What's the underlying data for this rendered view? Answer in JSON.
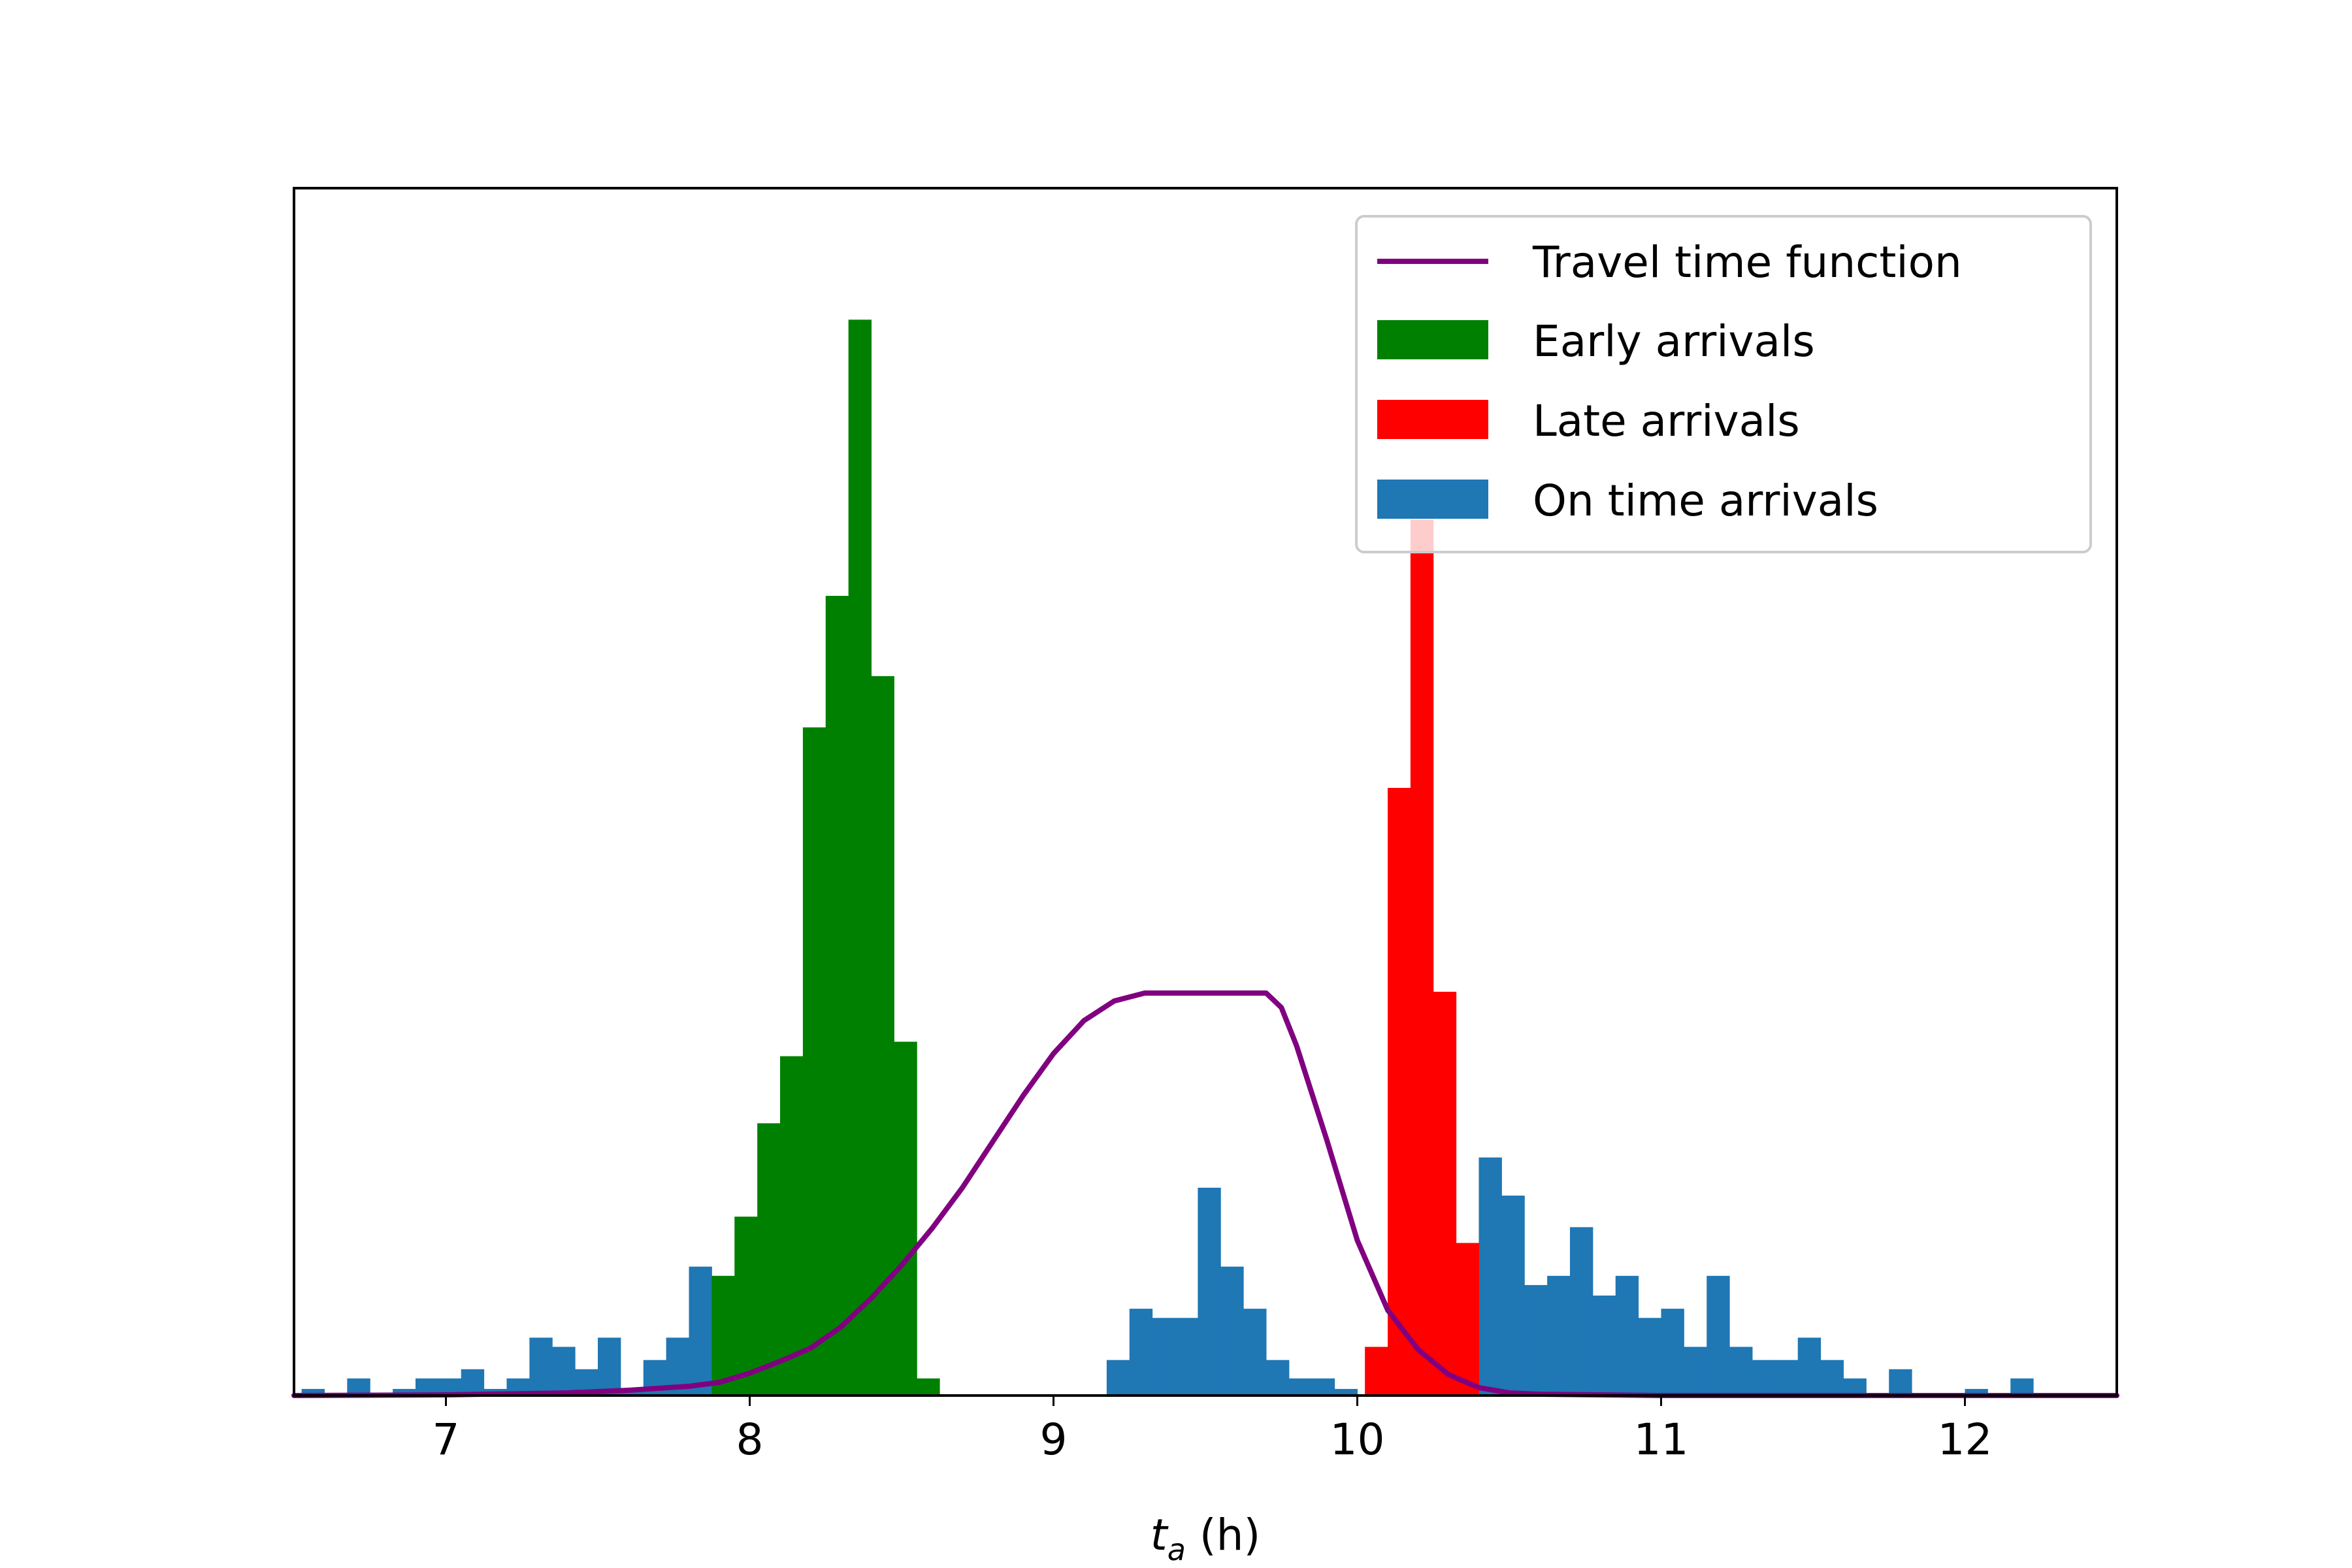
{
  "chart_data": {
    "type": "bar",
    "title": "",
    "xlabel": {
      "main": "t",
      "subscript": "a",
      "suffix": " (h)"
    },
    "ylabel": "",
    "xlim": [
      6.5,
      12.5
    ],
    "ylim": [
      0,
      91.8
    ],
    "bin_width": 0.075,
    "xticks": [
      7,
      8,
      9,
      10,
      11,
      12
    ],
    "show_y_ticks": false,
    "grid": false,
    "legend_position": "top-right",
    "legend": [
      {
        "label": "Travel time function",
        "kind": "line",
        "color": "#800080"
      },
      {
        "label": "Early arrivals",
        "kind": "patch",
        "color": "#008000"
      },
      {
        "label": "Late arrivals",
        "kind": "patch",
        "color": "#ff0000"
      },
      {
        "label": "On time arrivals",
        "kind": "patch",
        "color": "#1f77b4"
      }
    ],
    "series": [
      {
        "name": "On time arrivals",
        "color": "#1f77b4",
        "bins": [
          {
            "x": 6.525,
            "count": 0.5
          },
          {
            "x": 6.675,
            "count": 1.3
          },
          {
            "x": 6.825,
            "count": 0.5
          },
          {
            "x": 6.9,
            "count": 1.3
          },
          {
            "x": 6.975,
            "count": 1.3
          },
          {
            "x": 7.05,
            "count": 2.0
          },
          {
            "x": 7.125,
            "count": 0.5
          },
          {
            "x": 7.2,
            "count": 1.3
          },
          {
            "x": 7.275,
            "count": 4.4
          },
          {
            "x": 7.35,
            "count": 3.7
          },
          {
            "x": 7.425,
            "count": 2.0
          },
          {
            "x": 7.5,
            "count": 4.4
          },
          {
            "x": 7.575,
            "count": 0.5
          },
          {
            "x": 7.65,
            "count": 2.7
          },
          {
            "x": 7.725,
            "count": 4.4
          },
          {
            "x": 7.8,
            "count": 9.8
          },
          {
            "x": 9.175,
            "count": 2.7
          },
          {
            "x": 9.25,
            "count": 6.6
          },
          {
            "x": 9.325,
            "count": 5.9
          },
          {
            "x": 9.4,
            "count": 5.9
          },
          {
            "x": 9.475,
            "count": 15.8
          },
          {
            "x": 9.55,
            "count": 9.8
          },
          {
            "x": 9.625,
            "count": 6.6
          },
          {
            "x": 9.7,
            "count": 2.7
          },
          {
            "x": 9.775,
            "count": 1.3
          },
          {
            "x": 9.85,
            "count": 1.3
          },
          {
            "x": 9.925,
            "count": 0.5
          },
          {
            "x": 10.4,
            "count": 18.1
          },
          {
            "x": 10.475,
            "count": 15.2
          },
          {
            "x": 10.55,
            "count": 8.4
          },
          {
            "x": 10.625,
            "count": 9.1
          },
          {
            "x": 10.7,
            "count": 12.8
          },
          {
            "x": 10.775,
            "count": 7.6
          },
          {
            "x": 10.85,
            "count": 9.1
          },
          {
            "x": 10.925,
            "count": 5.9
          },
          {
            "x": 11.0,
            "count": 6.6
          },
          {
            "x": 11.075,
            "count": 3.7
          },
          {
            "x": 11.15,
            "count": 9.1
          },
          {
            "x": 11.225,
            "count": 3.7
          },
          {
            "x": 11.3,
            "count": 2.7
          },
          {
            "x": 11.375,
            "count": 2.7
          },
          {
            "x": 11.45,
            "count": 4.4
          },
          {
            "x": 11.525,
            "count": 2.7
          },
          {
            "x": 11.6,
            "count": 1.3
          },
          {
            "x": 11.75,
            "count": 2.0
          },
          {
            "x": 12.0,
            "count": 0.5
          },
          {
            "x": 12.15,
            "count": 1.3
          }
        ]
      },
      {
        "name": "Early arrivals",
        "color": "#008000",
        "bins": [
          {
            "x": 7.875,
            "count": 9.1
          },
          {
            "x": 7.95,
            "count": 13.6
          },
          {
            "x": 8.025,
            "count": 20.7
          },
          {
            "x": 8.1,
            "count": 25.8
          },
          {
            "x": 8.175,
            "count": 50.8
          },
          {
            "x": 8.25,
            "count": 60.8
          },
          {
            "x": 8.325,
            "count": 81.8
          },
          {
            "x": 8.4,
            "count": 54.7
          },
          {
            "x": 8.475,
            "count": 26.9
          },
          {
            "x": 8.55,
            "count": 1.3
          }
        ]
      },
      {
        "name": "Late arrivals",
        "color": "#ff0000",
        "bins": [
          {
            "x": 10.025,
            "count": 3.7
          },
          {
            "x": 10.1,
            "count": 46.2
          },
          {
            "x": 10.175,
            "count": 66.6
          },
          {
            "x": 10.25,
            "count": 30.7
          },
          {
            "x": 10.325,
            "count": 11.6
          }
        ]
      }
    ],
    "line": {
      "name": "Travel time function",
      "color": "#800080",
      "x": [
        6.5,
        7.0,
        7.4,
        7.6,
        7.8,
        7.9,
        8.0,
        8.1,
        8.2,
        8.3,
        8.4,
        8.5,
        8.6,
        8.7,
        8.8,
        8.9,
        9.0,
        9.1,
        9.2,
        9.3,
        9.5,
        9.7,
        9.75,
        9.8,
        9.85,
        9.9,
        10.0,
        10.1,
        10.2,
        10.3,
        10.4,
        10.5,
        10.6,
        10.8,
        11.0,
        12.5
      ],
      "y": [
        0.0,
        0.05,
        0.2,
        0.4,
        0.7,
        1.0,
        1.7,
        2.6,
        3.6,
        5.2,
        7.4,
        9.9,
        12.7,
        15.8,
        19.3,
        22.8,
        26.0,
        28.5,
        30.0,
        30.6,
        30.6,
        30.6,
        29.5,
        26.6,
        23.0,
        19.4,
        11.8,
        6.5,
        3.5,
        1.6,
        0.6,
        0.2,
        0.1,
        0.05,
        0.0,
        0.0
      ]
    }
  }
}
